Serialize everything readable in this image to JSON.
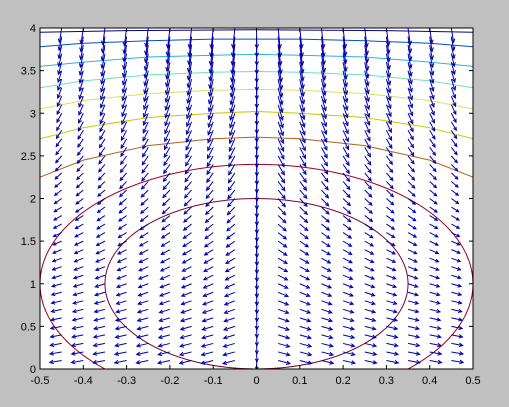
{
  "chart_data": {
    "type": "contour+quiver",
    "title": "",
    "xlabel": "",
    "ylabel": "",
    "xlim": [
      -0.5,
      0.5
    ],
    "ylim": [
      0,
      4
    ],
    "xticks": [
      "-0.5",
      "-0.4",
      "-0.3",
      "-0.2",
      "-0.1",
      "0",
      "0.1",
      "0.2",
      "0.3",
      "0.4",
      "0.5"
    ],
    "yticks": [
      "0",
      "0.5",
      "1",
      "1.5",
      "2",
      "2.5",
      "3",
      "3.5",
      "4"
    ],
    "grid": false,
    "colors": {
      "figure_bg": "#c0c0c0",
      "axes_bg": "#ffffff",
      "quiver": "#0000aa",
      "contour_levels": [
        "#7a0030",
        "#a00020",
        "#b06020",
        "#c8c800",
        "#e0e050",
        "#70e0c0",
        "#30b0e0",
        "#0050c0",
        "#00008a"
      ]
    },
    "quiver_grid": {
      "x": [
        -0.5,
        -0.45,
        -0.4,
        -0.35,
        -0.3,
        -0.25,
        -0.2,
        -0.15,
        -0.1,
        -0.05,
        0,
        0.05,
        0.1,
        0.15,
        0.2,
        0.25,
        0.3,
        0.35,
        0.4,
        0.45,
        0.5
      ],
      "y_start": 0,
      "y_end": 4,
      "y_step": 0.1
    },
    "contours": [
      {
        "type": "ellipse",
        "center": [
          0,
          1
        ],
        "semi_axes": [
          0.35,
          1.0
        ]
      },
      {
        "type": "ellipse",
        "center": [
          0,
          1
        ],
        "semi_axes": [
          0.5,
          1.4
        ]
      },
      {
        "type": "arch",
        "level": 2,
        "points": [
          [
            -0.5,
            2.25
          ],
          [
            -0.4,
            2.45
          ],
          [
            -0.25,
            2.62
          ],
          [
            -0.1,
            2.7
          ],
          [
            0,
            2.72
          ],
          [
            0.1,
            2.7
          ],
          [
            0.25,
            2.62
          ],
          [
            0.4,
            2.45
          ],
          [
            0.5,
            2.25
          ]
        ]
      },
      {
        "type": "arch",
        "level": 3,
        "points": [
          [
            -0.5,
            2.7
          ],
          [
            -0.4,
            2.83
          ],
          [
            -0.25,
            2.95
          ],
          [
            -0.1,
            3.0
          ],
          [
            0,
            3.02
          ],
          [
            0.1,
            3.0
          ],
          [
            0.25,
            2.95
          ],
          [
            0.4,
            2.83
          ],
          [
            0.5,
            2.7
          ]
        ]
      },
      {
        "type": "arch",
        "level": 4,
        "points": [
          [
            -0.5,
            3.05
          ],
          [
            -0.4,
            3.15
          ],
          [
            -0.25,
            3.23
          ],
          [
            -0.1,
            3.27
          ],
          [
            0,
            3.28
          ],
          [
            0.1,
            3.27
          ],
          [
            0.25,
            3.23
          ],
          [
            0.4,
            3.15
          ],
          [
            0.5,
            3.05
          ]
        ]
      },
      {
        "type": "arch",
        "level": 5,
        "points": [
          [
            -0.5,
            3.3
          ],
          [
            -0.4,
            3.38
          ],
          [
            -0.25,
            3.45
          ],
          [
            -0.1,
            3.48
          ],
          [
            0,
            3.49
          ],
          [
            0.1,
            3.48
          ],
          [
            0.25,
            3.45
          ],
          [
            0.4,
            3.38
          ],
          [
            0.5,
            3.3
          ]
        ]
      },
      {
        "type": "arch",
        "level": 6,
        "points": [
          [
            -0.5,
            3.55
          ],
          [
            -0.4,
            3.6
          ],
          [
            -0.25,
            3.66
          ],
          [
            -0.1,
            3.68
          ],
          [
            0,
            3.69
          ],
          [
            0.1,
            3.68
          ],
          [
            0.25,
            3.66
          ],
          [
            0.4,
            3.6
          ],
          [
            0.5,
            3.55
          ]
        ]
      },
      {
        "type": "arch",
        "level": 7,
        "points": [
          [
            -0.5,
            3.78
          ],
          [
            -0.4,
            3.82
          ],
          [
            -0.25,
            3.85
          ],
          [
            -0.1,
            3.87
          ],
          [
            0,
            3.87
          ],
          [
            0.1,
            3.87
          ],
          [
            0.25,
            3.85
          ],
          [
            0.4,
            3.82
          ],
          [
            0.5,
            3.78
          ]
        ]
      },
      {
        "type": "arch",
        "level": 8,
        "points": [
          [
            -0.5,
            3.95
          ],
          [
            -0.3,
            3.97
          ],
          [
            0,
            3.98
          ],
          [
            0.3,
            3.97
          ],
          [
            0.5,
            3.95
          ]
        ]
      }
    ]
  }
}
